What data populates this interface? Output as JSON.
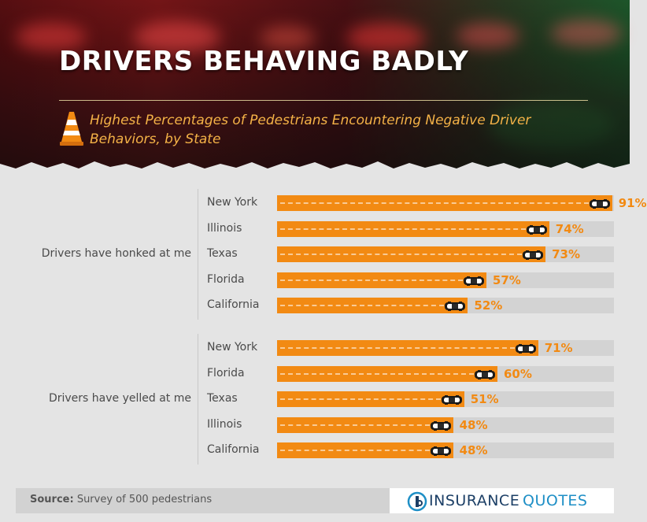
{
  "header": {
    "title": "DRIVERS BEHAVING BADLY",
    "subtitle": "Highest Percentages of Pedestrians Encountering Negative Driver Behaviors, by State"
  },
  "chart_data": {
    "type": "bar",
    "orientation": "horizontal",
    "xlim": [
      0,
      100
    ],
    "groups": [
      {
        "label": "Drivers have honked at me",
        "categories": [
          "New York",
          "Illinois",
          "Texas",
          "Florida",
          "California"
        ],
        "values": [
          91,
          74,
          73,
          57,
          52
        ],
        "value_labels": [
          "91%",
          "74%",
          "73%",
          "57%",
          "52%"
        ]
      },
      {
        "label": "Drivers have yelled at me",
        "categories": [
          "New York",
          "Florida",
          "Texas",
          "Illinois",
          "California"
        ],
        "values": [
          71,
          60,
          51,
          48,
          48
        ],
        "value_labels": [
          "71%",
          "60%",
          "51%",
          "48%",
          "48%"
        ]
      }
    ],
    "colors": {
      "bar": "#f28a13",
      "track": "#d3d3d3",
      "label": "#4a4a4a"
    }
  },
  "footer": {
    "source_label": "Source:",
    "source_text": " Survey of 500 pedestrians",
    "logo_part1": "INSURANCE",
    "logo_part2": "QUOTES"
  },
  "icons": [
    "traffic-cone-icon",
    "car-icon",
    "logo-icon"
  ]
}
